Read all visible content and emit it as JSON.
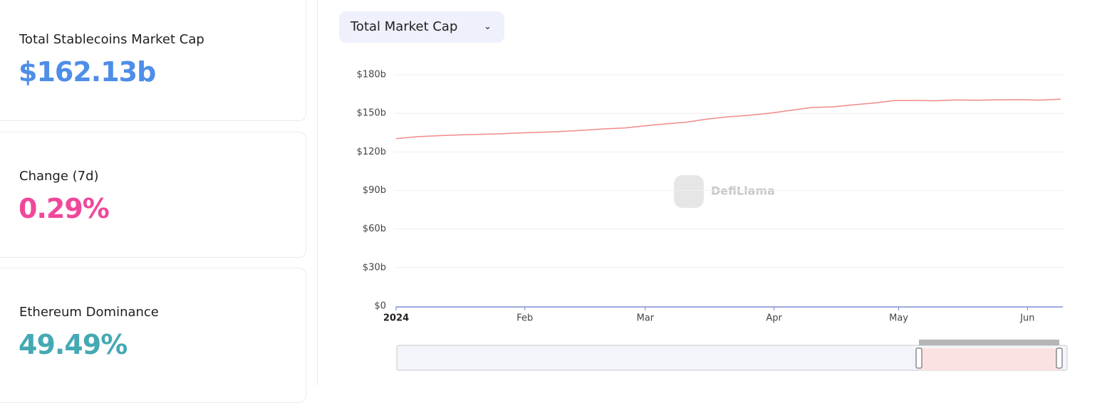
{
  "stats": [
    {
      "label": "Total Stablecoins Market Cap",
      "value": "$162.13b"
    },
    {
      "label": "Change (7d)",
      "value": "0.29%"
    },
    {
      "label": "Ethereum Dominance",
      "value": "49.49%"
    }
  ],
  "dropdown": {
    "label": "Total Market Cap"
  },
  "chart_data": {
    "type": "line",
    "watermark": "DefiLlama",
    "x": [
      0,
      5,
      10,
      15,
      20,
      25,
      30,
      35,
      40,
      45,
      50,
      55,
      60,
      65,
      70,
      75,
      80,
      85,
      90,
      95,
      100,
      105,
      110,
      115,
      120,
      125,
      130,
      135,
      140,
      145,
      150,
      155,
      160
    ],
    "series": [
      {
        "color": "#f08a8a",
        "values": [
          130.3,
          131.8,
          132.6,
          133.2,
          133.6,
          134.1,
          134.8,
          135.3,
          135.9,
          136.8,
          137.9,
          138.6,
          140.3,
          141.8,
          143.2,
          145.6,
          147.3,
          148.5,
          150.1,
          152.3,
          154.5,
          155.0,
          156.6,
          158.0,
          159.9,
          160.0,
          159.8,
          160.4,
          160.2,
          160.5,
          160.6,
          160.3,
          161.0
        ]
      }
    ],
    "xlim": [
      0,
      160
    ],
    "xticks": [
      {
        "value": 0,
        "label": "2024"
      },
      {
        "value": 31,
        "label": "Feb"
      },
      {
        "value": 60,
        "label": "Mar"
      },
      {
        "value": 91,
        "label": "Apr"
      },
      {
        "value": 121,
        "label": "May"
      },
      {
        "value": 152,
        "label": "Jun"
      }
    ],
    "ylim": [
      0,
      180
    ],
    "yticks": [
      {
        "value": 0,
        "label": "$0"
      },
      {
        "value": 30,
        "label": "$30b"
      },
      {
        "value": 60,
        "label": "$60b"
      },
      {
        "value": 90,
        "label": "$90b"
      },
      {
        "value": 120,
        "label": "$120b"
      },
      {
        "value": 150,
        "label": "$150b"
      },
      {
        "value": 180,
        "label": "$180b"
      }
    ],
    "grid": true
  }
}
